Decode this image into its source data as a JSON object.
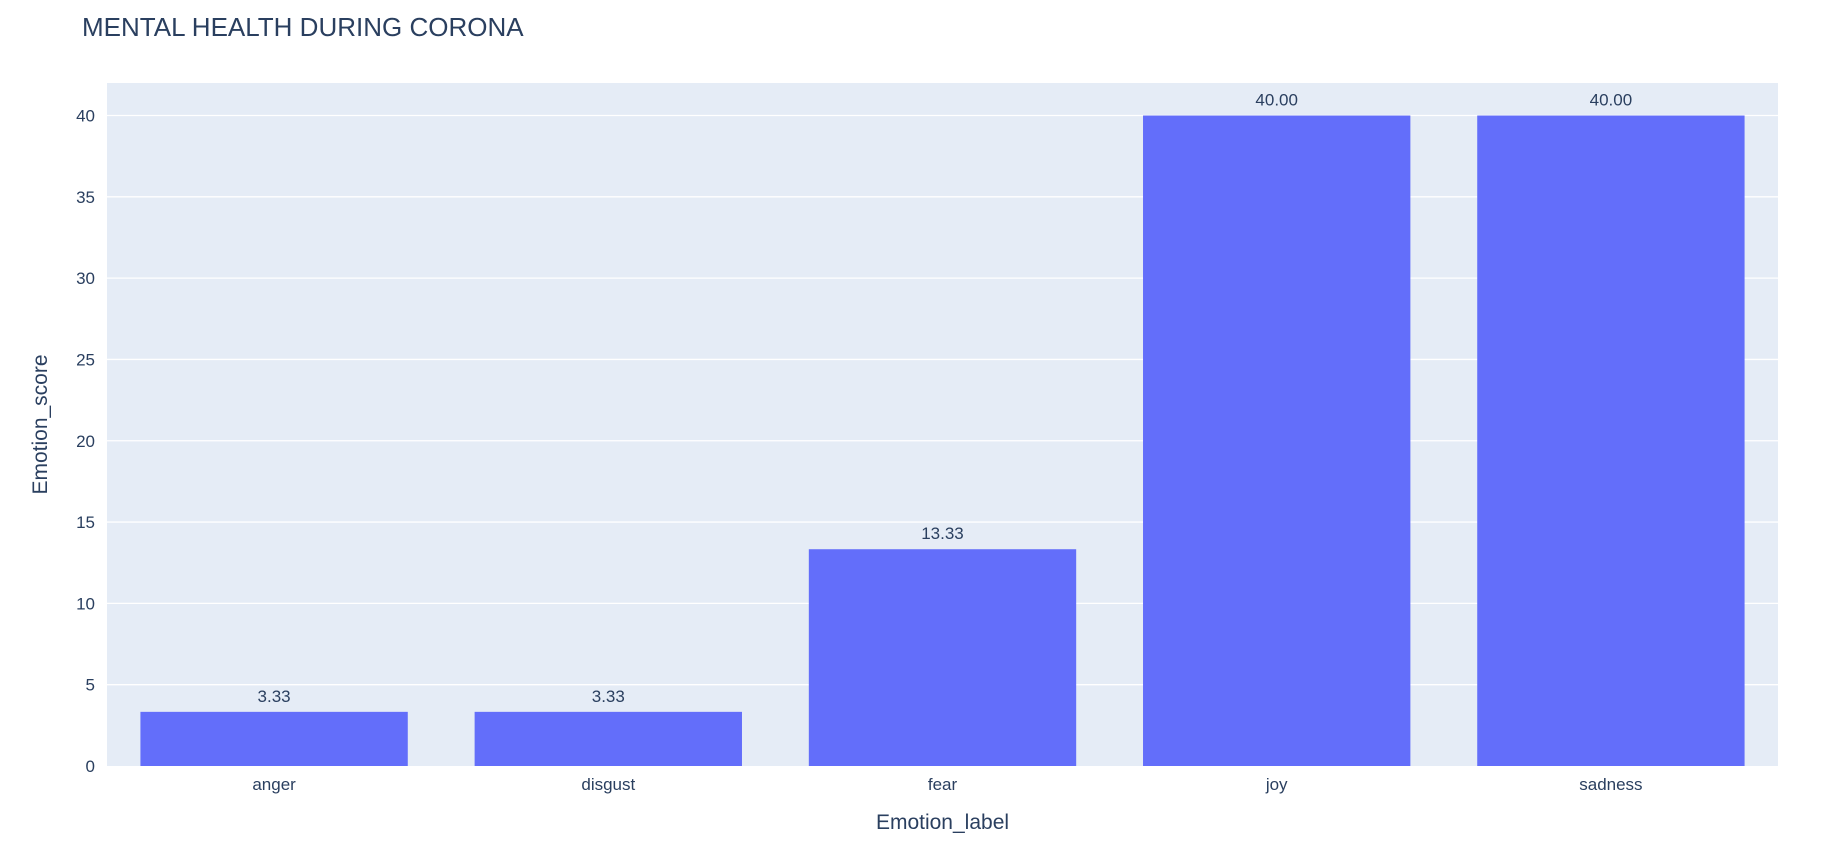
{
  "chart_data": {
    "type": "bar",
    "title": "MENTAL HEALTH DURING CORONA",
    "xlabel": "Emotion_label",
    "ylabel": "Emotion_score",
    "categories": [
      "anger",
      "disgust",
      "fear",
      "joy",
      "sadness"
    ],
    "values": [
      3.33,
      3.33,
      13.33,
      40.0,
      40.0
    ],
    "data_labels": [
      "3.33",
      "3.33",
      "13.33",
      "40.00",
      "40.00"
    ],
    "ylim": [
      0,
      42
    ],
    "yticks": [
      0,
      5,
      10,
      15,
      20,
      25,
      30,
      35,
      40
    ],
    "grid": true,
    "colors": {
      "bar": "#636efa",
      "plot_bg": "#e5ecf6",
      "gridline": "#ffffff",
      "text": "#2a3f5f"
    }
  }
}
